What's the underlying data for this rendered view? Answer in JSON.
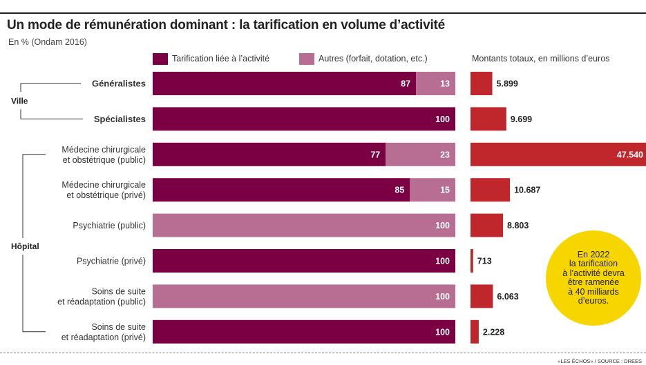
{
  "colors": {
    "activite": "#7b0043",
    "autres": "#b86e93",
    "montant": "#c0272d",
    "callout": "#f7d600"
  },
  "header": {
    "title": "Un mode de rémunération dominant : la tarification en volume d’activité",
    "subtitle": "En % (Ondam 2016)"
  },
  "legend": {
    "activite_label": "Tarification liée à l’activité",
    "autres_label": "Autres (forfait, dotation, etc.)",
    "montants_label": "Montants totaux, en millions d’euros"
  },
  "groups": {
    "ville": "Ville",
    "hopital": "Hôpital"
  },
  "chart_data": {
    "type": "bar",
    "stacked": true,
    "categories": [
      "Généralistes",
      "Spécialistes",
      "Médecine chirurgicale\net obstétrique (public)",
      "Médecine chirurgicale\net obstétrique (privé)",
      "Psychiatrie (public)",
      "Psychiatrie (privé)",
      "Soins de suite\net réadaptation (public)",
      "Soins de suite\net réadaptation (privé)"
    ],
    "series": [
      {
        "name": "Tarification liée à l’activité",
        "values": [
          87,
          100,
          77,
          85,
          0,
          100,
          0,
          100
        ]
      },
      {
        "name": "Autres (forfait, dotation, etc.)",
        "values": [
          13,
          0,
          23,
          15,
          100,
          0,
          100,
          0
        ]
      }
    ],
    "montants": {
      "name": "Montants totaux, en millions d’euros",
      "values": [
        5899,
        9699,
        47540,
        10687,
        8803,
        713,
        6063,
        2228
      ],
      "labels": [
        "5.899",
        "9.699",
        "47.540",
        "10.687",
        "8.803",
        "713",
        "6.063",
        "2.228"
      ]
    },
    "bold_categories": [
      0,
      1
    ],
    "xlim": [
      0,
      100
    ]
  },
  "callout": {
    "text": "En  2022\nla tarification\nà l’activité devra\nêtre ramenée\nà 40 milliards\nd’euros."
  },
  "footer": {
    "credit": "«LES ÉCHOS» / SOURCE : DREES"
  }
}
